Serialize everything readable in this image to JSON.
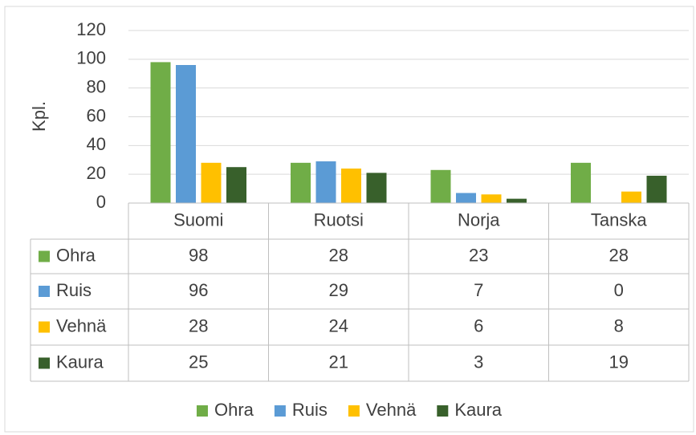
{
  "chart_data": {
    "type": "bar",
    "y_label": "Kpl.",
    "categories": [
      "Suomi",
      "Ruotsi",
      "Norja",
      "Tanska"
    ],
    "series": [
      {
        "name": "Ohra",
        "color": "#70ad47",
        "values": [
          98,
          28,
          23,
          28
        ]
      },
      {
        "name": "Ruis",
        "color": "#5b9bd5",
        "values": [
          96,
          29,
          7,
          0
        ]
      },
      {
        "name": "Vehnä",
        "color": "#ffc000",
        "values": [
          28,
          24,
          6,
          8
        ]
      },
      {
        "name": "Kaura",
        "color": "#38602b",
        "values": [
          25,
          21,
          3,
          19
        ]
      }
    ],
    "ylim": [
      0,
      120
    ],
    "yticks": [
      0,
      20,
      40,
      60,
      80,
      100,
      120
    ],
    "grid": true,
    "legend": "bottom"
  }
}
